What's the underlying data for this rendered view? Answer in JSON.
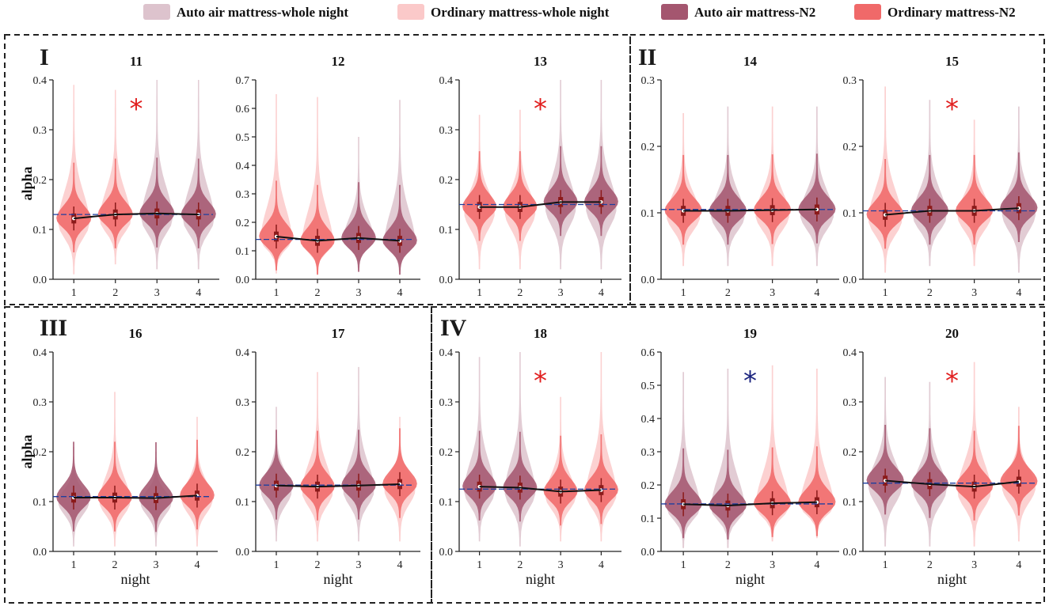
{
  "colors": {
    "auto_whole": "#ddc3cd",
    "ordinary_whole": "#fbc9c9",
    "auto_n2": "#a4566f",
    "ordinary_n2": "#f06969",
    "mean_line": "#111111",
    "ref_line": "#1f3f9f",
    "star_red": "#e11f1f",
    "star_blue": "#1a237e",
    "box": "#8b1a1a"
  },
  "legend": [
    {
      "label": "Auto air mattress-whole night",
      "color_key": "auto_whole"
    },
    {
      "label": "Ordinary mattress-whole night",
      "color_key": "ordinary_whole"
    },
    {
      "label": "Auto air mattress-N2",
      "color_key": "auto_n2"
    },
    {
      "label": "Ordinary mattress-N2",
      "color_key": "ordinary_n2"
    }
  ],
  "groups": [
    {
      "label": "I"
    },
    {
      "label": "II"
    },
    {
      "label": "III"
    },
    {
      "label": "IV"
    }
  ],
  "axis_text": {
    "ylabel": "alpha",
    "xlabel": "night"
  },
  "chart_data": [
    {
      "type": "violin",
      "title": "11",
      "ylim": [
        0,
        0.4
      ],
      "yticks": [
        "0.0",
        "0.1",
        "0.2",
        "0.3",
        "0.4"
      ],
      "xcats": [
        "1",
        "2",
        "3",
        "4"
      ],
      "mattress": [
        "O",
        "O",
        "A",
        "A"
      ],
      "medians": [
        0.122,
        0.13,
        0.132,
        0.13
      ],
      "ref": 0.13,
      "wmax": [
        0.39,
        0.38,
        0.4,
        0.4
      ],
      "wmin": [
        0.01,
        0.03,
        0.02,
        0.02
      ],
      "star": "*",
      "star_color": "star_red",
      "xlabel": "",
      "ylabel": "alpha"
    },
    {
      "type": "violin",
      "title": "12",
      "ylim": [
        0,
        0.7
      ],
      "yticks": [
        "0.0",
        "0.1",
        "0.2",
        "0.3",
        "0.4",
        "0.5",
        "0.6",
        "0.7"
      ],
      "xcats": [
        "1",
        "2",
        "3",
        "4"
      ],
      "mattress": [
        "O",
        "O",
        "A",
        "A"
      ],
      "medians": [
        0.15,
        0.135,
        0.145,
        0.135
      ],
      "ref": 0.14,
      "wmax": [
        0.65,
        0.64,
        0.5,
        0.63
      ],
      "wmin": [
        0.02,
        0.02,
        0.04,
        0.03
      ],
      "star": "",
      "star_color": "star_red",
      "xlabel": "",
      "ylabel": ""
    },
    {
      "type": "violin",
      "title": "13",
      "ylim": [
        0,
        0.4
      ],
      "yticks": [
        "0.0",
        "0.1",
        "0.2",
        "0.3",
        "0.4"
      ],
      "xcats": [
        "1",
        "2",
        "3",
        "4"
      ],
      "mattress": [
        "O",
        "O",
        "A",
        "A"
      ],
      "medians": [
        0.145,
        0.145,
        0.155,
        0.155
      ],
      "ref": 0.15,
      "wmax": [
        0.33,
        0.34,
        0.4,
        0.4
      ],
      "wmin": [
        0.02,
        0.02,
        0.02,
        0.02
      ],
      "star": "*",
      "star_color": "star_red",
      "xlabel": "",
      "ylabel": ""
    },
    {
      "type": "violin",
      "title": "14",
      "ylim": [
        0,
        0.3
      ],
      "yticks": [
        "0.0",
        "0.1",
        "0.2",
        "0.3"
      ],
      "xcats": [
        "1",
        "2",
        "3",
        "4"
      ],
      "mattress": [
        "O",
        "A",
        "O",
        "A"
      ],
      "medians": [
        0.103,
        0.103,
        0.104,
        0.105
      ],
      "ref": 0.105,
      "wmax": [
        0.25,
        0.26,
        0.26,
        0.26
      ],
      "wmin": [
        0.02,
        0.02,
        0.02,
        0.02
      ],
      "star": "",
      "star_color": "star_red",
      "xlabel": "",
      "ylabel": ""
    },
    {
      "type": "violin",
      "title": "15",
      "ylim": [
        0,
        0.3
      ],
      "yticks": [
        "0.0",
        "0.1",
        "0.2",
        "0.3"
      ],
      "xcats": [
        "1",
        "2",
        "3",
        "4"
      ],
      "mattress": [
        "O",
        "A",
        "O",
        "A"
      ],
      "medians": [
        0.097,
        0.103,
        0.103,
        0.107
      ],
      "ref": 0.103,
      "wmax": [
        0.29,
        0.27,
        0.24,
        0.26
      ],
      "wmin": [
        0.01,
        0.02,
        0.02,
        0.01
      ],
      "star": "*",
      "star_color": "star_red",
      "xlabel": "",
      "ylabel": ""
    },
    {
      "type": "violin",
      "title": "16",
      "ylim": [
        0,
        0.4
      ],
      "yticks": [
        "0.0",
        "0.1",
        "0.2",
        "0.3",
        "0.4"
      ],
      "xcats": [
        "1",
        "2",
        "3",
        "4"
      ],
      "mattress": [
        "A",
        "O",
        "A",
        "O"
      ],
      "medians": [
        0.108,
        0.108,
        0.107,
        0.112
      ],
      "ref": 0.11,
      "wmax": [
        0.21,
        0.32,
        0.2,
        0.27
      ],
      "wmin": [
        0.01,
        0.01,
        0.01,
        0.01
      ],
      "star": "",
      "star_color": "star_red",
      "xlabel": "night",
      "ylabel": "alpha"
    },
    {
      "type": "violin",
      "title": "17",
      "ylim": [
        0,
        0.4
      ],
      "yticks": [
        "0.0",
        "0.1",
        "0.2",
        "0.3",
        "0.4"
      ],
      "xcats": [
        "1",
        "2",
        "3",
        "4"
      ],
      "mattress": [
        "A",
        "O",
        "A",
        "O"
      ],
      "medians": [
        0.132,
        0.13,
        0.132,
        0.135
      ],
      "ref": 0.133,
      "wmax": [
        0.29,
        0.36,
        0.37,
        0.27
      ],
      "wmin": [
        0.02,
        0.02,
        0.02,
        0.02
      ],
      "star": "",
      "star_color": "star_red",
      "xlabel": "night",
      "ylabel": ""
    },
    {
      "type": "violin",
      "title": "18",
      "ylim": [
        0,
        0.4
      ],
      "yticks": [
        "0.0",
        "0.1",
        "0.2",
        "0.3",
        "0.4"
      ],
      "xcats": [
        "1",
        "2",
        "3",
        "4"
      ],
      "mattress": [
        "A",
        "A",
        "O",
        "O"
      ],
      "medians": [
        0.13,
        0.128,
        0.12,
        0.123
      ],
      "ref": 0.125,
      "wmax": [
        0.39,
        0.4,
        0.31,
        0.4
      ],
      "wmin": [
        0.02,
        0.01,
        0.02,
        0.02
      ],
      "star": "*",
      "star_color": "star_red",
      "xlabel": "night",
      "ylabel": ""
    },
    {
      "type": "violin",
      "title": "19",
      "ylim": [
        0,
        0.6
      ],
      "yticks": [
        "0.0",
        "0.1",
        "0.2",
        "0.3",
        "0.4",
        "0.5",
        "0.6"
      ],
      "xcats": [
        "1",
        "2",
        "3",
        "4"
      ],
      "mattress": [
        "A",
        "A",
        "O",
        "O"
      ],
      "medians": [
        0.142,
        0.138,
        0.145,
        0.148
      ],
      "ref": 0.143,
      "wmax": [
        0.54,
        0.55,
        0.56,
        0.55
      ],
      "wmin": [
        0.01,
        0.01,
        0.03,
        0.04
      ],
      "star": "*",
      "star_color": "star_blue",
      "xlabel": "night",
      "ylabel": ""
    },
    {
      "type": "violin",
      "title": "20",
      "ylim": [
        0,
        0.4
      ],
      "yticks": [
        "0.0",
        "0.1",
        "0.2",
        "0.3",
        "0.4"
      ],
      "xcats": [
        "1",
        "2",
        "3",
        "4"
      ],
      "mattress": [
        "A",
        "A",
        "O",
        "O"
      ],
      "medians": [
        0.142,
        0.135,
        0.13,
        0.14
      ],
      "ref": 0.137,
      "wmax": [
        0.35,
        0.34,
        0.38,
        0.29
      ],
      "wmin": [
        0.01,
        0.01,
        0.01,
        0.02
      ],
      "star": "*",
      "star_color": "star_red",
      "xlabel": "night",
      "ylabel": ""
    }
  ]
}
